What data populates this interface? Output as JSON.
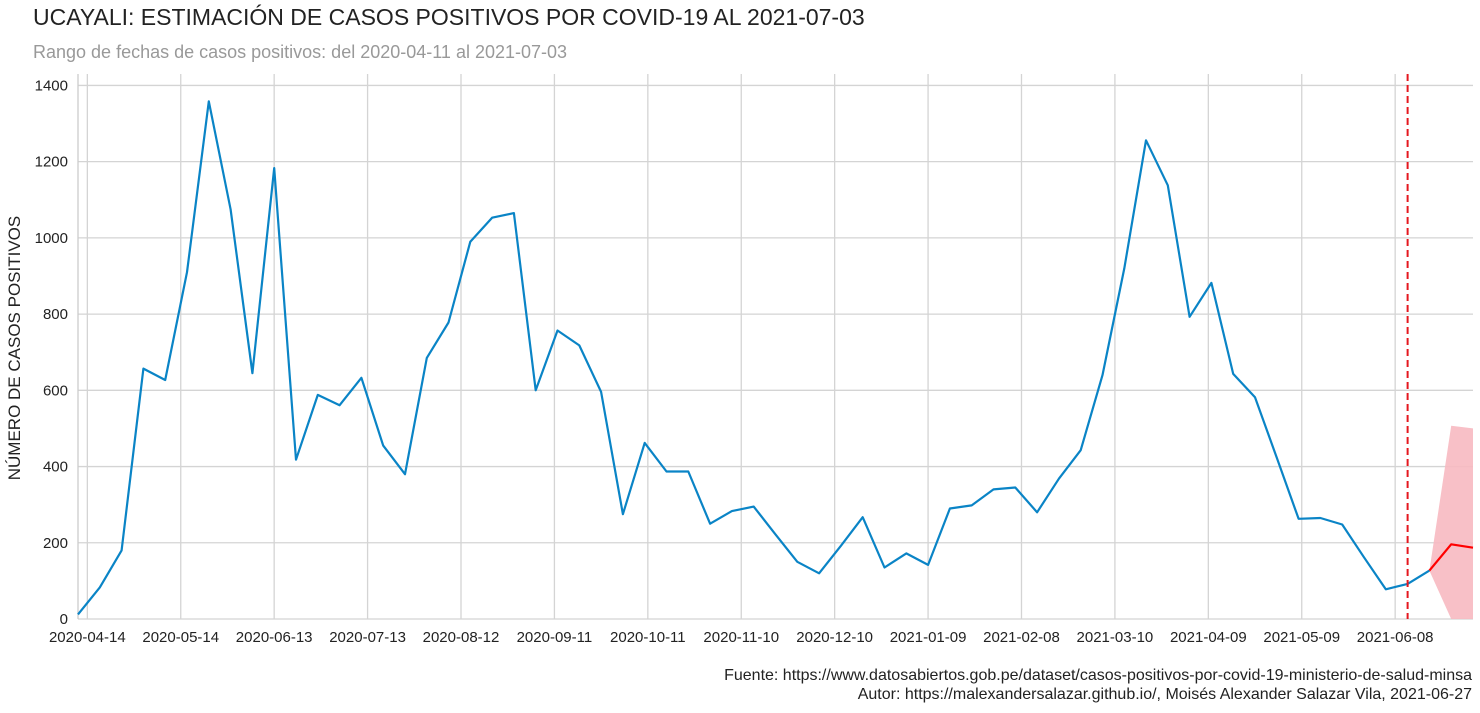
{
  "header": {
    "title": "UCAYALI: ESTIMACIÓN DE CASOS POSITIVOS POR COVID-19 AL 2021-07-03",
    "subtitle": "Rango de fechas de casos positivos: del 2020-04-11 al 2021-07-03"
  },
  "footer": {
    "source": "Fuente: https://www.datosabiertos.gob.pe/dataset/casos-positivos-por-covid-19-ministerio-de-salud-minsa",
    "author": "Autor: https://malexandersalazar.github.io/, Moisés Alexander Salazar Vila, 2021-06-27"
  },
  "colors": {
    "observed": "#0a84c6",
    "forecast": "#ff0000",
    "interval": "#f7b9c1",
    "cutoff": "#e5171f",
    "grid": "#d4d4d4"
  },
  "chart_data": {
    "type": "line",
    "ylabel": "NÚMERO DE CASOS POSITIVOS",
    "xlim": [
      "2020-04-11",
      "2021-07-03"
    ],
    "ylim": [
      0,
      1430
    ],
    "grid": true,
    "x_ticks": [
      "2020-04-14",
      "2020-05-14",
      "2020-06-13",
      "2020-07-13",
      "2020-08-12",
      "2020-09-11",
      "2020-10-11",
      "2020-11-10",
      "2020-12-10",
      "2021-01-09",
      "2021-02-08",
      "2021-03-10",
      "2021-04-09",
      "2021-05-09",
      "2021-06-08"
    ],
    "y_ticks": [
      0,
      200,
      400,
      600,
      800,
      1000,
      1200,
      1400
    ],
    "cutoff_date": "2021-06-12",
    "series": [
      {
        "role": "observed",
        "x": [
          "2020-04-11",
          "2020-04-18",
          "2020-04-25",
          "2020-05-02",
          "2020-05-09",
          "2020-05-16",
          "2020-05-23",
          "2020-05-30",
          "2020-06-06",
          "2020-06-13",
          "2020-06-20",
          "2020-06-27",
          "2020-07-04",
          "2020-07-11",
          "2020-07-18",
          "2020-07-25",
          "2020-08-01",
          "2020-08-08",
          "2020-08-15",
          "2020-08-22",
          "2020-08-29",
          "2020-09-05",
          "2020-09-12",
          "2020-09-19",
          "2020-09-26",
          "2020-10-03",
          "2020-10-10",
          "2020-10-17",
          "2020-10-24",
          "2020-10-31",
          "2020-11-07",
          "2020-11-14",
          "2020-11-21",
          "2020-11-28",
          "2020-12-05",
          "2020-12-12",
          "2020-12-19",
          "2020-12-26",
          "2021-01-02",
          "2021-01-09",
          "2021-01-16",
          "2021-01-23",
          "2021-01-30",
          "2021-02-06",
          "2021-02-13",
          "2021-02-20",
          "2021-02-27",
          "2021-03-06",
          "2021-03-13",
          "2021-03-20",
          "2021-03-27",
          "2021-04-03",
          "2021-04-10",
          "2021-04-17",
          "2021-04-24",
          "2021-05-01",
          "2021-05-08",
          "2021-05-15",
          "2021-05-22",
          "2021-05-29",
          "2021-06-05",
          "2021-06-12",
          "2021-06-19"
        ],
        "values": [
          12,
          83,
          180,
          657,
          627,
          910,
          1358,
          1075,
          645,
          1183,
          418,
          588,
          561,
          633,
          455,
          380,
          685,
          778,
          990,
          1053,
          1065,
          600,
          757,
          718,
          596,
          275,
          462,
          387,
          387,
          250,
          283,
          295,
          222,
          150,
          120,
          192,
          267,
          135,
          172,
          142,
          290,
          298,
          340,
          345,
          280,
          368,
          443,
          640,
          920,
          1256,
          1138,
          793,
          882,
          643,
          582,
          423,
          263,
          265,
          248,
          162,
          78,
          92,
          127
        ]
      },
      {
        "role": "forecast",
        "x": [
          "2021-06-19",
          "2021-06-26",
          "2021-07-03"
        ],
        "values": [
          127,
          196,
          187
        ],
        "lower": [
          127,
          0,
          0
        ],
        "upper": [
          127,
          507,
          500
        ]
      }
    ]
  }
}
